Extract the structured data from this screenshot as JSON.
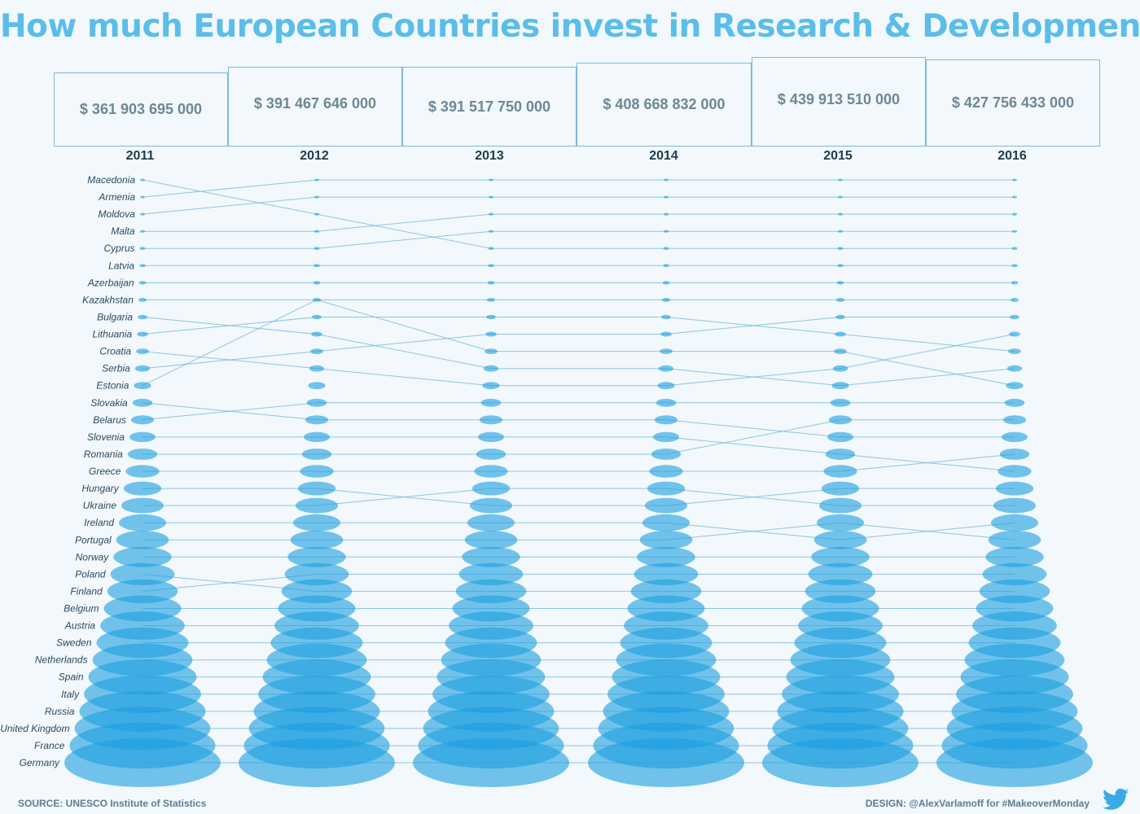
{
  "title": "How much European Countries invest in Research & Development",
  "source": "SOURCE: UNESCO Institute of Statistics",
  "design": "DESIGN: @AlexVarlamoff for #MakeoverMonday",
  "colors": {
    "title": "#5bbde9",
    "bubble": "#1a9fe0",
    "line": "#7fbcdc"
  },
  "icons": {
    "twitter": "twitter-bird-icon"
  },
  "years": [
    {
      "label": "2011",
      "total": "$ 361 903 695 000"
    },
    {
      "label": "2012",
      "total": "$ 391 467 646 000"
    },
    {
      "label": "2013",
      "total": "$ 391 517 750 000"
    },
    {
      "label": "2014",
      "total": "$ 408 668 832 000"
    },
    {
      "label": "2015",
      "total": "$ 439 913 510 000"
    },
    {
      "label": "2016",
      "total": "$ 427 756 433 000"
    }
  ],
  "chart_data": {
    "type": "bump",
    "x": [
      "2011",
      "2012",
      "2013",
      "2014",
      "2015",
      "2016"
    ],
    "totals": [
      361903695000,
      391467646000,
      391517750000,
      408668832000,
      439913510000,
      427756433000
    ],
    "countries_2011_order": [
      "Macedonia",
      "Armenia",
      "Moldova",
      "Malta",
      "Cyprus",
      "Latvia",
      "Azerbaijan",
      "Kazakhstan",
      "Bulgaria",
      "Lithuania",
      "Croatia",
      "Serbia",
      "Estonia",
      "Slovakia",
      "Belarus",
      "Slovenia",
      "Romania",
      "Greece",
      "Hungary",
      "Ukraine",
      "Ireland",
      "Portugal",
      "Norway",
      "Poland",
      "Finland",
      "Belgium",
      "Austria",
      "Sweden",
      "Netherlands",
      "Spain",
      "Italy",
      "Russia",
      "United Kingdom",
      "France",
      "Germany"
    ],
    "rank_from_top": {
      "Macedonia": [
        1,
        3,
        5,
        5,
        5,
        5
      ],
      "Armenia": [
        2,
        1,
        1,
        1,
        1,
        1
      ],
      "Moldova": [
        3,
        2,
        2,
        2,
        2,
        2
      ],
      "Malta": [
        4,
        4,
        3,
        3,
        3,
        3
      ],
      "Cyprus": [
        5,
        5,
        4,
        4,
        4,
        4
      ],
      "Latvia": [
        6,
        6,
        6,
        6,
        6,
        6
      ],
      "Azerbaijan": [
        7,
        7,
        7,
        7,
        7,
        7
      ],
      "Kazakhstan": [
        8,
        8,
        11,
        11,
        11,
        13
      ],
      "Bulgaria": [
        9,
        10,
        12,
        12,
        13,
        12
      ],
      "Lithuania": [
        10,
        9,
        9,
        9,
        10,
        11
      ],
      "Croatia": [
        11,
        12,
        13,
        13,
        12,
        10
      ],
      "Serbia": [
        12,
        11,
        10,
        10,
        9,
        9
      ],
      "Estonia": [
        13,
        8,
        8,
        8,
        8,
        8
      ],
      "Slovakia": [
        14,
        15,
        15,
        15,
        16,
        16
      ],
      "Belarus": [
        15,
        14,
        14,
        14,
        14,
        14
      ],
      "Slovenia": [
        16,
        16,
        16,
        16,
        17,
        18
      ],
      "Romania": [
        17,
        17,
        17,
        17,
        15,
        15
      ],
      "Greece": [
        18,
        18,
        18,
        18,
        18,
        17
      ],
      "Hungary": [
        19,
        19,
        20,
        20,
        19,
        19
      ],
      "Ukraine": [
        20,
        20,
        19,
        19,
        20,
        20
      ],
      "Ireland": [
        21,
        21,
        21,
        21,
        22,
        21
      ],
      "Portugal": [
        22,
        22,
        22,
        22,
        21,
        22
      ],
      "Norway": [
        23,
        23,
        23,
        23,
        23,
        23
      ],
      "Poland": [
        24,
        25,
        25,
        25,
        25,
        25
      ],
      "Finland": [
        25,
        24,
        24,
        24,
        24,
        24
      ],
      "Belgium": [
        26,
        26,
        26,
        26,
        26,
        26
      ],
      "Austria": [
        27,
        27,
        27,
        27,
        27,
        27
      ],
      "Sweden": [
        28,
        28,
        28,
        28,
        28,
        28
      ],
      "Netherlands": [
        29,
        29,
        29,
        29,
        29,
        29
      ],
      "Spain": [
        30,
        30,
        30,
        30,
        30,
        30
      ],
      "Italy": [
        31,
        31,
        31,
        31,
        31,
        31
      ],
      "Russia": [
        32,
        32,
        32,
        32,
        32,
        32
      ],
      "United Kingdom": [
        33,
        33,
        33,
        33,
        33,
        33
      ],
      "France": [
        34,
        34,
        34,
        34,
        34,
        34
      ],
      "Germany": [
        35,
        35,
        35,
        35,
        35,
        35
      ]
    }
  }
}
